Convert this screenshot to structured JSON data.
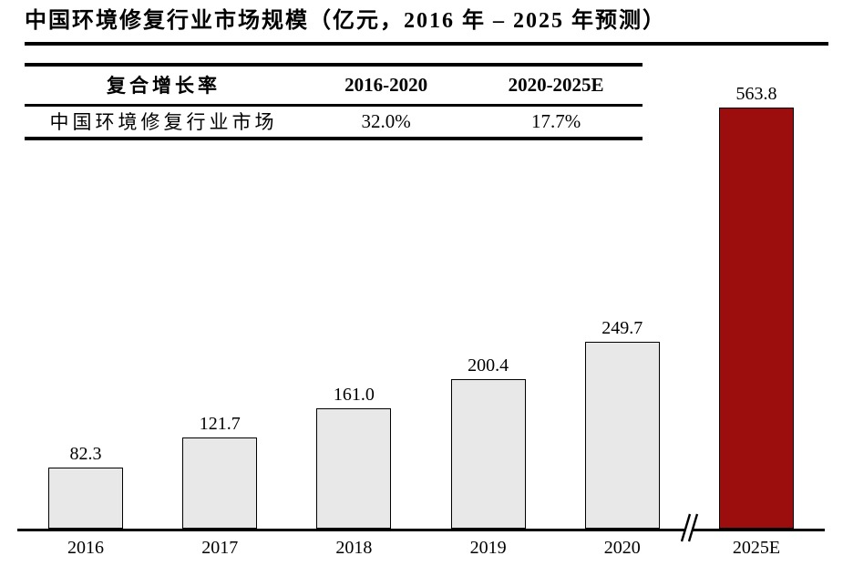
{
  "title": "中国环境修复行业市场规模（亿元，2016 年 – 2025 年预测）",
  "table": {
    "headers": [
      "复合增长率",
      "2016-2020",
      "2020-2025E"
    ],
    "rows": [
      [
        "中国环境修复行业市场",
        "32.0%",
        "17.7%"
      ]
    ]
  },
  "chart_data": {
    "type": "bar",
    "title": "中国环境修复行业市场规模（亿元，2016 年 – 2025 年预测）",
    "unit": "亿元",
    "categories": [
      "2016",
      "2017",
      "2018",
      "2019",
      "2020",
      "2025E"
    ],
    "values": [
      82.3,
      121.7,
      161.0,
      200.4,
      249.7,
      563.8
    ],
    "value_labels": [
      "82.3",
      "121.7",
      "161.0",
      "200.4",
      "249.7",
      "563.8"
    ],
    "bar_colors": [
      "#E8E8E8",
      "#E8E8E8",
      "#E8E8E8",
      "#E8E8E8",
      "#E8E8E8",
      "#9C0D0D"
    ],
    "base_color": "#E8E8E8",
    "highlight_color": "#9C0D0D",
    "axis_color": "#000000",
    "axis_break_between": [
      "2020",
      "2025E"
    ],
    "ylim": [
      0,
      600
    ],
    "grid": false,
    "legend": null,
    "xlabel": "",
    "ylabel": ""
  }
}
